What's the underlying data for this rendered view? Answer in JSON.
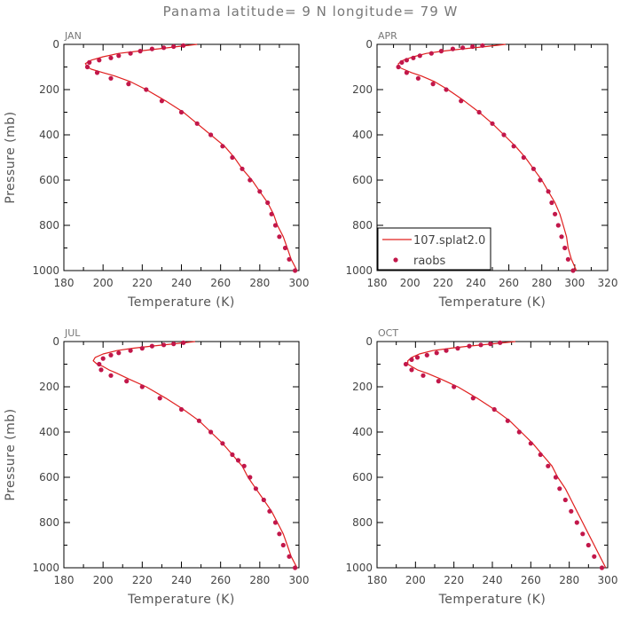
{
  "title": "Panama  latitude= 9 N longitude= 79 W",
  "colors": {
    "model": "#e0201f",
    "obs": "#c2174a",
    "axis": "#000000",
    "text": "#555555"
  },
  "legend": {
    "panel": 1,
    "entries": [
      {
        "label": "107.splat2.0",
        "kind": "line"
      },
      {
        "label": "raobs",
        "kind": "marker"
      }
    ]
  },
  "chart_data": [
    {
      "type": "line",
      "title": "JAN",
      "xlabel": "Temperature (K)",
      "ylabel": "Pressure (mb)",
      "xlim": [
        180,
        300
      ],
      "ylim": [
        1000,
        0
      ],
      "y_inverted": true,
      "xticks": [
        180,
        200,
        220,
        240,
        260,
        280,
        300
      ],
      "yticks": [
        0,
        200,
        400,
        600,
        800,
        1000
      ],
      "series": [
        {
          "name": "107.splat2.0",
          "kind": "line",
          "points": [
            [
              248,
              0
            ],
            [
              238,
              10
            ],
            [
              228,
              20
            ],
            [
              218,
              30
            ],
            [
              208,
              40
            ],
            [
              200,
              55
            ],
            [
              194,
              70
            ],
            [
              191,
              85
            ],
            [
              192,
              100
            ],
            [
              194,
              110
            ],
            [
              200,
              125
            ],
            [
              206,
              140
            ],
            [
              214,
              165
            ],
            [
              222,
              200
            ],
            [
              232,
              250
            ],
            [
              241,
              300
            ],
            [
              248,
              350
            ],
            [
              255,
              400
            ],
            [
              262,
              450
            ],
            [
              267,
              500
            ],
            [
              271,
              550
            ],
            [
              276,
              600
            ],
            [
              280,
              650
            ],
            [
              284,
              700
            ],
            [
              287,
              750
            ],
            [
              289,
              800
            ],
            [
              292,
              850
            ],
            [
              294,
              900
            ],
            [
              296,
              950
            ],
            [
              299,
              1000
            ]
          ]
        },
        {
          "name": "raobs",
          "kind": "scatter",
          "points": [
            [
              241,
              5
            ],
            [
              236,
              10
            ],
            [
              231,
              15
            ],
            [
              225,
              20
            ],
            [
              219,
              30
            ],
            [
              214,
              40
            ],
            [
              208,
              50
            ],
            [
              204,
              60
            ],
            [
              198,
              70
            ],
            [
              193,
              80
            ],
            [
              192,
              100
            ],
            [
              197,
              125
            ],
            [
              204,
              150
            ],
            [
              213,
              175
            ],
            [
              222,
              200
            ],
            [
              230,
              250
            ],
            [
              240,
              300
            ],
            [
              248,
              350
            ],
            [
              255,
              400
            ],
            [
              261,
              450
            ],
            [
              266,
              500
            ],
            [
              271,
              550
            ],
            [
              275,
              600
            ],
            [
              280,
              650
            ],
            [
              284,
              700
            ],
            [
              286,
              750
            ],
            [
              288,
              800
            ],
            [
              290,
              850
            ],
            [
              293,
              900
            ],
            [
              295,
              950
            ],
            [
              298,
              1000
            ]
          ]
        }
      ]
    },
    {
      "type": "line",
      "title": "APR",
      "xlabel": "Temperature (K)",
      "ylabel": "",
      "xlim": [
        180,
        320
      ],
      "ylim": [
        1000,
        0
      ],
      "y_inverted": true,
      "xticks": [
        180,
        200,
        220,
        240,
        260,
        280,
        300,
        320
      ],
      "yticks": [
        0,
        200,
        400,
        600,
        800,
        1000
      ],
      "series": [
        {
          "name": "107.splat2.0",
          "kind": "line",
          "points": [
            [
              258,
              0
            ],
            [
              246,
              10
            ],
            [
              232,
              20
            ],
            [
              220,
              30
            ],
            [
              210,
              40
            ],
            [
              202,
              55
            ],
            [
              196,
              70
            ],
            [
              193,
              85
            ],
            [
              193,
              100
            ],
            [
              196,
              110
            ],
            [
              201,
              125
            ],
            [
              207,
              140
            ],
            [
              215,
              165
            ],
            [
              223,
              200
            ],
            [
              233,
              250
            ],
            [
              242,
              300
            ],
            [
              250,
              350
            ],
            [
              257,
              400
            ],
            [
              264,
              450
            ],
            [
              270,
              500
            ],
            [
              275,
              550
            ],
            [
              280,
              600
            ],
            [
              284,
              650
            ],
            [
              288,
              700
            ],
            [
              291,
              750
            ],
            [
              293,
              800
            ],
            [
              295,
              850
            ],
            [
              296,
              900
            ],
            [
              298,
              950
            ],
            [
              301,
              1000
            ]
          ]
        },
        {
          "name": "raobs",
          "kind": "scatter",
          "points": [
            [
              244,
              5
            ],
            [
              238,
              10
            ],
            [
              232,
              15
            ],
            [
              226,
              20
            ],
            [
              219,
              30
            ],
            [
              213,
              40
            ],
            [
              206,
              50
            ],
            [
              202,
              60
            ],
            [
              198,
              70
            ],
            [
              195,
              80
            ],
            [
              193,
              100
            ],
            [
              198,
              125
            ],
            [
              205,
              150
            ],
            [
              214,
              175
            ],
            [
              222,
              200
            ],
            [
              231,
              250
            ],
            [
              242,
              300
            ],
            [
              250,
              350
            ],
            [
              257,
              400
            ],
            [
              263,
              450
            ],
            [
              269,
              500
            ],
            [
              275,
              550
            ],
            [
              279,
              600
            ],
            [
              284,
              650
            ],
            [
              286,
              700
            ],
            [
              288,
              750
            ],
            [
              290,
              800
            ],
            [
              292,
              850
            ],
            [
              294,
              900
            ],
            [
              296,
              950
            ],
            [
              299,
              1000
            ]
          ]
        }
      ]
    },
    {
      "type": "line",
      "title": "JUL",
      "xlabel": "Temperature (K)",
      "ylabel": "Pressure (mb)",
      "xlim": [
        180,
        300
      ],
      "ylim": [
        1000,
        0
      ],
      "y_inverted": true,
      "xticks": [
        180,
        200,
        220,
        240,
        260,
        280,
        300
      ],
      "yticks": [
        0,
        200,
        400,
        600,
        800,
        1000
      ],
      "series": [
        {
          "name": "107.splat2.0",
          "kind": "line",
          "points": [
            [
              247,
              0
            ],
            [
              236,
              10
            ],
            [
              225,
              20
            ],
            [
              215,
              30
            ],
            [
              207,
              40
            ],
            [
              200,
              55
            ],
            [
              196,
              70
            ],
            [
              195,
              85
            ],
            [
              197,
              100
            ],
            [
              200,
              110
            ],
            [
              203,
              125
            ],
            [
              207,
              140
            ],
            [
              213,
              165
            ],
            [
              222,
              200
            ],
            [
              232,
              250
            ],
            [
              241,
              300
            ],
            [
              249,
              350
            ],
            [
              255,
              400
            ],
            [
              261,
              450
            ],
            [
              266,
              500
            ],
            [
              271,
              550
            ],
            [
              274,
              600
            ],
            [
              278,
              650
            ],
            [
              282,
              700
            ],
            [
              286,
              750
            ],
            [
              289,
              800
            ],
            [
              292,
              850
            ],
            [
              294,
              900
            ],
            [
              296,
              950
            ],
            [
              299,
              1000
            ]
          ]
        },
        {
          "name": "raobs",
          "kind": "scatter",
          "points": [
            [
              241,
              5
            ],
            [
              236,
              10
            ],
            [
              231,
              15
            ],
            [
              225,
              20
            ],
            [
              220,
              30
            ],
            [
              214,
              40
            ],
            [
              208,
              50
            ],
            [
              204,
              60
            ],
            [
              200,
              75
            ],
            [
              198,
              100
            ],
            [
              199,
              125
            ],
            [
              204,
              150
            ],
            [
              212,
              175
            ],
            [
              220,
              200
            ],
            [
              229,
              250
            ],
            [
              240,
              300
            ],
            [
              249,
              350
            ],
            [
              255,
              400
            ],
            [
              261,
              450
            ],
            [
              266,
              500
            ],
            [
              269,
              525
            ],
            [
              272,
              550
            ],
            [
              275,
              600
            ],
            [
              278,
              650
            ],
            [
              282,
              700
            ],
            [
              285,
              750
            ],
            [
              288,
              800
            ],
            [
              290,
              850
            ],
            [
              292,
              900
            ],
            [
              295,
              950
            ],
            [
              298,
              1000
            ]
          ]
        }
      ]
    },
    {
      "type": "line",
      "title": "OCT",
      "xlabel": "Temperature (K)",
      "ylabel": "",
      "xlim": [
        180,
        300
      ],
      "ylim": [
        1000,
        0
      ],
      "y_inverted": true,
      "xticks": [
        180,
        200,
        220,
        240,
        260,
        280,
        300
      ],
      "yticks": [
        0,
        200,
        400,
        600,
        800,
        1000
      ],
      "series": [
        {
          "name": "107.splat2.0",
          "kind": "line",
          "points": [
            [
              252,
              0
            ],
            [
              240,
              10
            ],
            [
              228,
              20
            ],
            [
              218,
              30
            ],
            [
              209,
              40
            ],
            [
              202,
              55
            ],
            [
              198,
              70
            ],
            [
              196,
              85
            ],
            [
              196,
              100
            ],
            [
              198,
              110
            ],
            [
              201,
              125
            ],
            [
              206,
              140
            ],
            [
              213,
              165
            ],
            [
              222,
              200
            ],
            [
              232,
              250
            ],
            [
              241,
              300
            ],
            [
              249,
              350
            ],
            [
              255,
              400
            ],
            [
              261,
              450
            ],
            [
              266,
              500
            ],
            [
              271,
              550
            ],
            [
              274,
              600
            ],
            [
              278,
              650
            ],
            [
              281,
              700
            ],
            [
              284,
              750
            ],
            [
              287,
              800
            ],
            [
              290,
              850
            ],
            [
              293,
              900
            ],
            [
              296,
              950
            ],
            [
              299,
              1000
            ]
          ]
        },
        {
          "name": "raobs",
          "kind": "scatter",
          "points": [
            [
              244,
              5
            ],
            [
              239,
              10
            ],
            [
              234,
              15
            ],
            [
              228,
              20
            ],
            [
              222,
              30
            ],
            [
              216,
              40
            ],
            [
              211,
              50
            ],
            [
              206,
              60
            ],
            [
              201,
              70
            ],
            [
              198,
              80
            ],
            [
              195,
              100
            ],
            [
              198,
              125
            ],
            [
              204,
              150
            ],
            [
              212,
              175
            ],
            [
              220,
              200
            ],
            [
              230,
              250
            ],
            [
              241,
              300
            ],
            [
              248,
              350
            ],
            [
              254,
              400
            ],
            [
              260,
              450
            ],
            [
              265,
              500
            ],
            [
              269,
              550
            ],
            [
              273,
              600
            ],
            [
              275,
              650
            ],
            [
              278,
              700
            ],
            [
              281,
              750
            ],
            [
              284,
              800
            ],
            [
              287,
              850
            ],
            [
              290,
              900
            ],
            [
              293,
              950
            ],
            [
              297,
              1000
            ]
          ]
        }
      ]
    }
  ]
}
